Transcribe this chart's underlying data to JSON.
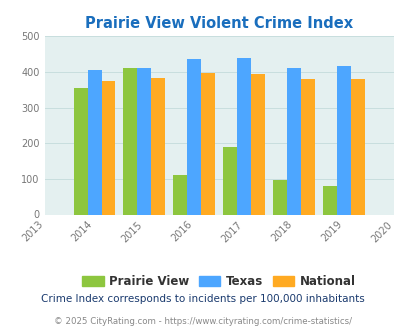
{
  "title": "Prairie View Violent Crime Index",
  "years": [
    2013,
    2014,
    2015,
    2016,
    2017,
    2018,
    2019,
    2020
  ],
  "data_years": [
    2014,
    2015,
    2016,
    2017,
    2018,
    2019
  ],
  "prairie_view": [
    355,
    410,
    110,
    188,
    97,
    80
  ],
  "texas": [
    405,
    410,
    435,
    438,
    410,
    418
  ],
  "national": [
    375,
    383,
    397,
    393,
    380,
    380
  ],
  "color_prairie": "#8dc63f",
  "color_texas": "#4da6ff",
  "color_national": "#ffaa22",
  "bg_color": "#e4f0f0",
  "title_color": "#1a6ebd",
  "subtitle": "Crime Index corresponds to incidents per 100,000 inhabitants",
  "footer": "© 2025 CityRating.com - https://www.cityrating.com/crime-statistics/",
  "ylim": [
    0,
    500
  ],
  "yticks": [
    0,
    100,
    200,
    300,
    400,
    500
  ],
  "bar_width": 0.28,
  "legend_labels": [
    "Prairie View",
    "Texas",
    "National"
  ],
  "grid_color": "#c8dede",
  "tick_label_color": "#777777",
  "legend_text_color": "#333333",
  "subtitle_color": "#1a3a6e",
  "footer_color": "#888888"
}
